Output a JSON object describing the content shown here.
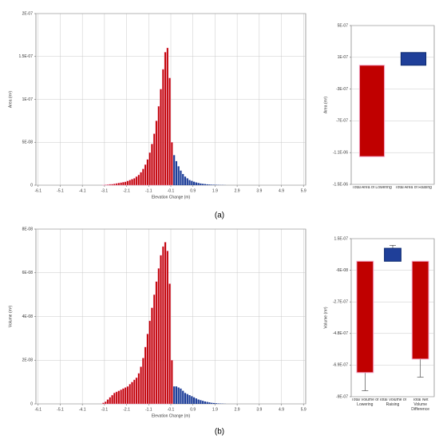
{
  "captions": [
    "(a)",
    "(b)"
  ],
  "chart_data": [
    {
      "type": "histogram",
      "ylabel": "Area (m²)",
      "xlabel": "Elevation Change (m)",
      "xlim": [
        -6.2,
        6.0
      ],
      "xticks": [
        -6.1,
        -5.1,
        -4.1,
        -3.1,
        -2.1,
        -1.1,
        -0.1,
        0.9,
        1.9,
        2.9,
        3.9,
        4.9,
        5.9
      ],
      "ylim": [
        0,
        2e-07
      ],
      "yticks": [
        0,
        {
          "value": 5e-08,
          "label": "5E-08"
        },
        {
          "value": 1e-07,
          "label": "1E-07"
        },
        {
          "value": 1.5e-07,
          "label": "1.5E-07"
        },
        {
          "value": 2e-07,
          "label": "2E-07"
        }
      ],
      "grid": true,
      "series": [
        {
          "color": "#c00000",
          "bins": [
            -3.2,
            -3.1,
            -3.0,
            -2.9,
            -2.8,
            -2.7,
            -2.6,
            -2.5,
            -2.4,
            -2.3,
            -2.2,
            -2.1,
            -2.0,
            -1.9,
            -1.8,
            -1.7,
            -1.6,
            -1.5,
            -1.4,
            -1.3,
            -1.2,
            -1.1,
            -1.0,
            -0.9,
            -0.8,
            -0.7,
            -0.6,
            -0.5,
            -0.4,
            -0.3,
            -0.2,
            -0.1,
            0.0
          ],
          "counts": [
            3e-10,
            5e-10,
            7e-10,
            1e-09,
            1.2e-09,
            1.5e-09,
            2e-09,
            2.5e-09,
            3e-09,
            3.5e-09,
            4e-09,
            5e-09,
            6e-09,
            7e-09,
            8e-09,
            1e-08,
            1.2e-08,
            1.5e-08,
            1.9e-08,
            2.4e-08,
            3e-08,
            3.8e-08,
            4.8e-08,
            6e-08,
            7.5e-08,
            9.2e-08,
            1.12e-07,
            1.35e-07,
            1.55e-07,
            1.6e-07,
            1.25e-07,
            5e-08
          ]
        },
        {
          "color": "#1f3f99",
          "bins": [
            0.0,
            0.1,
            0.2,
            0.3,
            0.4,
            0.5,
            0.6,
            0.7,
            0.8,
            0.9,
            1.0,
            1.1,
            1.2,
            1.3,
            1.4,
            1.5,
            1.6,
            1.7,
            1.8,
            1.9,
            2.0,
            2.1,
            2.2,
            2.3,
            2.4
          ],
          "counts": [
            3.5e-08,
            2.8e-08,
            2.2e-08,
            1.7e-08,
            1.3e-08,
            1e-08,
            8e-09,
            6e-09,
            5e-09,
            4e-09,
            3.2e-09,
            2.6e-09,
            2e-09,
            1.6e-09,
            1.3e-09,
            1e-09,
            8e-10,
            6e-10,
            5e-10,
            4e-10,
            3e-10,
            2e-10,
            2e-10,
            1e-10
          ]
        }
      ]
    },
    {
      "type": "bar",
      "ylabel": "Area (m²)",
      "categories": [
        "Total Area of Lowering",
        "Total Area of Raising"
      ],
      "values": [
        -1.15e-06,
        1.6e-07
      ],
      "colors": [
        "#c00000",
        "#1f3f99"
      ],
      "ylim": [
        -1.5e-06,
        5e-07
      ],
      "yticks": [
        {
          "value": 5e-07,
          "label": "5E-07"
        },
        {
          "value": 1e-07,
          "label": "1E-07"
        },
        {
          "value": -3e-07,
          "label": "-3E-07"
        },
        {
          "value": -7e-07,
          "label": "-7E-07"
        },
        {
          "value": -1.1e-06,
          "label": "-1.1E-06"
        },
        {
          "value": -1.5e-06,
          "label": "-1.5E-06"
        }
      ],
      "grid": true
    },
    {
      "type": "histogram",
      "ylabel": "Volume (m³)",
      "xlabel": "Elevation Change (m)",
      "xlim": [
        -6.2,
        6.0
      ],
      "xticks": [
        -6.1,
        -5.1,
        -4.1,
        -3.1,
        -2.1,
        -1.1,
        -0.1,
        0.9,
        1.9,
        2.9,
        3.9,
        4.9,
        5.9
      ],
      "ylim": [
        0,
        8e-08
      ],
      "yticks": [
        0,
        {
          "value": 2e-08,
          "label": "2E-08"
        },
        {
          "value": 4e-08,
          "label": "4E-08"
        },
        {
          "value": 6e-08,
          "label": "6E-08"
        },
        {
          "value": 8e-08,
          "label": "8E-08"
        }
      ],
      "grid": true,
      "series": [
        {
          "color": "#c00000",
          "bins": [
            -3.2,
            -3.1,
            -3.0,
            -2.9,
            -2.8,
            -2.7,
            -2.6,
            -2.5,
            -2.4,
            -2.3,
            -2.2,
            -2.1,
            -2.0,
            -1.9,
            -1.8,
            -1.7,
            -1.6,
            -1.5,
            -1.4,
            -1.3,
            -1.2,
            -1.1,
            -1.0,
            -0.9,
            -0.8,
            -0.7,
            -0.6,
            -0.5,
            -0.4,
            -0.3,
            -0.2,
            -0.1,
            0.0
          ],
          "counts": [
            5e-10,
            1e-09,
            2e-09,
            3e-09,
            4e-09,
            5e-09,
            5.5e-09,
            6e-09,
            6.5e-09,
            7e-09,
            7.5e-09,
            8e-09,
            9e-09,
            1e-08,
            1.1e-08,
            1.2e-08,
            1.4e-08,
            1.7e-08,
            2.1e-08,
            2.6e-08,
            3.2e-08,
            3.8e-08,
            4.4e-08,
            5e-08,
            5.6e-08,
            6.2e-08,
            6.8e-08,
            7.2e-08,
            7.4e-08,
            7e-08,
            5.5e-08,
            2e-08
          ]
        },
        {
          "color": "#1f3f99",
          "bins": [
            0.0,
            0.1,
            0.2,
            0.3,
            0.4,
            0.5,
            0.6,
            0.7,
            0.8,
            0.9,
            1.0,
            1.1,
            1.2,
            1.3,
            1.4,
            1.5,
            1.6,
            1.7,
            1.8,
            1.9,
            2.0,
            2.1,
            2.2,
            2.3,
            2.4
          ],
          "counts": [
            8e-09,
            8e-09,
            7.5e-09,
            7e-09,
            6e-09,
            5e-09,
            4.5e-09,
            4e-09,
            3.5e-09,
            3e-09,
            2.5e-09,
            2e-09,
            1.7e-09,
            1.4e-09,
            1.1e-09,
            9e-10,
            7e-10,
            5e-10,
            4e-10,
            3e-10,
            2e-10,
            1.5e-10,
            1e-10,
            5e-11
          ]
        }
      ]
    },
    {
      "type": "bar",
      "ylabel": "Volume (m³)",
      "categories": [
        "Total Volume of Lowering",
        "Total Volume of Raising",
        "Total Net Volume Difference"
      ],
      "values": [
        -7.4e-07,
        8.6e-08,
        -6.5e-07
      ],
      "errors": [
        1.2e-07,
        2e-08,
        1.2e-07
      ],
      "colors": [
        "#c00000",
        "#1f3f99",
        "#c00000"
      ],
      "ylim": [
        -9e-07,
        1.5e-07
      ],
      "yticks": [
        {
          "value": 1.5e-07,
          "label": "1.5E-07"
        },
        {
          "value": -6e-08,
          "label": "-6E-08"
        },
        {
          "value": -2.7e-07,
          "label": "-2.7E-07"
        },
        {
          "value": -4.8e-07,
          "label": "-4.8E-07"
        },
        {
          "value": -6.9e-07,
          "label": "-6.9E-07"
        },
        {
          "value": -9e-07,
          "label": "-9E-07"
        }
      ],
      "grid": true
    }
  ]
}
